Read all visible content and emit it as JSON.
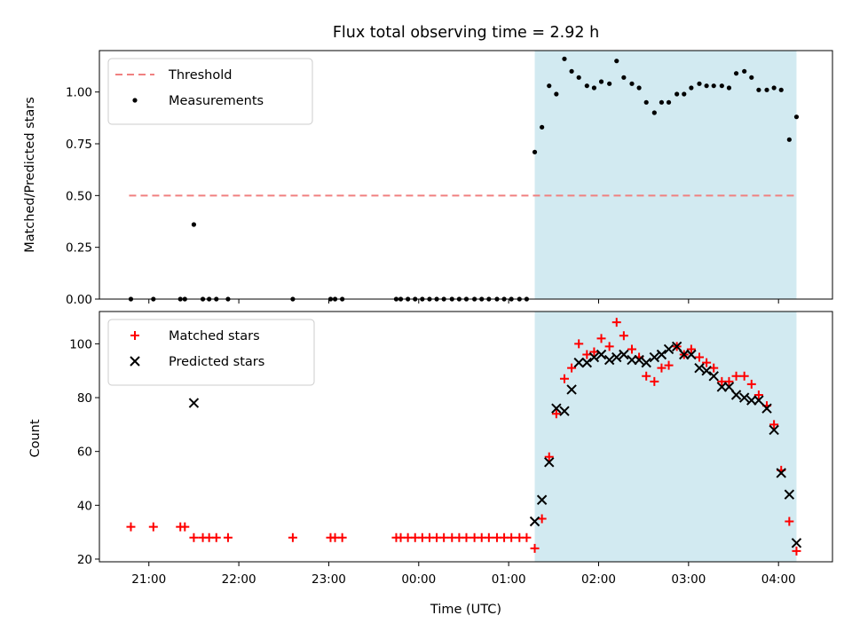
{
  "figure": {
    "title": "Flux total observing time = 2.92 h"
  },
  "chart_data": [
    {
      "type": "scatter",
      "panel": "top",
      "title": "Flux total observing time = 2.92 h",
      "xlabel": "",
      "ylabel": "Matched/Predicted stars",
      "x_unit": "hours relative to 00:00 UTC",
      "xlim": [
        -3.55,
        4.6
      ],
      "ylim": [
        0,
        1.2
      ],
      "yticks": [
        0.0,
        0.25,
        0.5,
        0.75,
        1.0
      ],
      "ytick_labels": [
        "0.00",
        "0.25",
        "0.50",
        "0.75",
        "1.00"
      ],
      "grid": false,
      "legend_position": "top-left",
      "observing_window": {
        "x_start": 1.29,
        "x_end": 4.2,
        "color": "#add8e6"
      },
      "threshold": {
        "name": "Threshold",
        "value": 0.5,
        "x_start": -3.22,
        "x_end": 4.2,
        "color": "#f08080",
        "style": "dashed"
      },
      "series": [
        {
          "name": "Measurements",
          "color": "#000000",
          "marker": "dot",
          "x": [
            -3.2,
            -2.95,
            -2.65,
            -2.6,
            -2.5,
            -2.4,
            -2.33,
            -2.25,
            -2.12,
            -1.4,
            -0.98,
            -0.93,
            -0.85,
            -0.25,
            -0.2,
            -0.12,
            -0.04,
            0.04,
            0.12,
            0.2,
            0.28,
            0.37,
            0.45,
            0.53,
            0.62,
            0.7,
            0.78,
            0.87,
            0.95,
            1.03,
            1.12,
            1.2,
            1.29,
            1.37,
            1.45,
            1.53,
            1.62,
            1.7,
            1.78,
            1.87,
            1.95,
            2.03,
            2.12,
            2.2,
            2.28,
            2.37,
            2.45,
            2.53,
            2.62,
            2.7,
            2.78,
            2.87,
            2.95,
            3.03,
            3.12,
            3.2,
            3.28,
            3.37,
            3.45,
            3.53,
            3.62,
            3.7,
            3.78,
            3.87,
            3.95,
            4.03,
            4.12,
            4.2
          ],
          "y": [
            0,
            0,
            0,
            0,
            0.36,
            0,
            0,
            0,
            0,
            0,
            0,
            0,
            0,
            0,
            0,
            0,
            0,
            0,
            0,
            0,
            0,
            0,
            0,
            0,
            0,
            0,
            0,
            0,
            0,
            0,
            0,
            0,
            0.71,
            0.83,
            1.03,
            0.99,
            1.16,
            1.1,
            1.07,
            1.03,
            1.02,
            1.05,
            1.04,
            1.15,
            1.07,
            1.04,
            1.02,
            0.95,
            0.9,
            0.95,
            0.95,
            0.99,
            0.99,
            1.02,
            1.04,
            1.03,
            1.03,
            1.03,
            1.02,
            1.09,
            1.1,
            1.07,
            1.01,
            1.01,
            1.02,
            1.01,
            0.77,
            0.88
          ]
        }
      ]
    },
    {
      "type": "scatter",
      "panel": "bottom",
      "title": "",
      "xlabel": "Time (UTC)",
      "ylabel": "Count",
      "x_unit": "hours relative to 00:00 UTC",
      "xlim": [
        -3.55,
        4.6
      ],
      "ylim": [
        19,
        112
      ],
      "yticks": [
        20,
        40,
        60,
        80,
        100
      ],
      "xticks": [
        -3,
        -2,
        -1,
        0,
        1,
        2,
        3,
        4
      ],
      "xtick_labels": [
        "21:00",
        "22:00",
        "23:00",
        "00:00",
        "01:00",
        "02:00",
        "03:00",
        "04:00"
      ],
      "grid": false,
      "legend_position": "top-left",
      "observing_window": {
        "x_start": 1.29,
        "x_end": 4.2,
        "color": "#add8e6"
      },
      "series": [
        {
          "name": "Matched stars",
          "color": "#ff0000",
          "marker": "plus",
          "x": [
            -3.2,
            -2.95,
            -2.65,
            -2.6,
            -2.5,
            -2.4,
            -2.33,
            -2.25,
            -2.12,
            -1.4,
            -0.98,
            -0.93,
            -0.85,
            -0.25,
            -0.2,
            -0.12,
            -0.04,
            0.04,
            0.12,
            0.2,
            0.28,
            0.37,
            0.45,
            0.53,
            0.62,
            0.7,
            0.78,
            0.87,
            0.95,
            1.03,
            1.12,
            1.2,
            1.29,
            1.37,
            1.45,
            1.53,
            1.62,
            1.7,
            1.78,
            1.87,
            1.95,
            2.03,
            2.12,
            2.2,
            2.28,
            2.37,
            2.45,
            2.53,
            2.62,
            2.7,
            2.78,
            2.87,
            2.95,
            3.03,
            3.12,
            3.2,
            3.28,
            3.37,
            3.45,
            3.53,
            3.62,
            3.7,
            3.78,
            3.87,
            3.95,
            4.03,
            4.12,
            4.2
          ],
          "y": [
            32,
            32,
            32,
            32,
            28,
            28,
            28,
            28,
            28,
            28,
            28,
            28,
            28,
            28,
            28,
            28,
            28,
            28,
            28,
            28,
            28,
            28,
            28,
            28,
            28,
            28,
            28,
            28,
            28,
            28,
            28,
            28,
            24,
            35,
            58,
            74,
            87,
            91,
            100,
            96,
            97,
            102,
            99,
            108,
            103,
            98,
            95,
            88,
            86,
            91,
            92,
            99,
            96,
            98,
            95,
            93,
            91,
            86,
            86,
            88,
            88,
            85,
            81,
            77,
            70,
            53,
            34,
            23
          ]
        },
        {
          "name": "Predicted stars",
          "color": "#000000",
          "marker": "x",
          "x": [
            -2.5,
            1.29,
            1.37,
            1.45,
            1.53,
            1.62,
            1.7,
            1.78,
            1.87,
            1.95,
            2.03,
            2.12,
            2.2,
            2.28,
            2.37,
            2.45,
            2.53,
            2.62,
            2.7,
            2.78,
            2.87,
            2.95,
            3.03,
            3.12,
            3.2,
            3.28,
            3.37,
            3.45,
            3.53,
            3.62,
            3.7,
            3.78,
            3.87,
            3.95,
            4.03,
            4.12,
            4.2
          ],
          "y": [
            78,
            34,
            42,
            56,
            76,
            75,
            83,
            93,
            93,
            95,
            96,
            94,
            95,
            96,
            94,
            94,
            93,
            95,
            96,
            98,
            99,
            96,
            96,
            91,
            90,
            88,
            84,
            84,
            81,
            80,
            79,
            79,
            76,
            68,
            52,
            44,
            26
          ]
        }
      ]
    }
  ]
}
